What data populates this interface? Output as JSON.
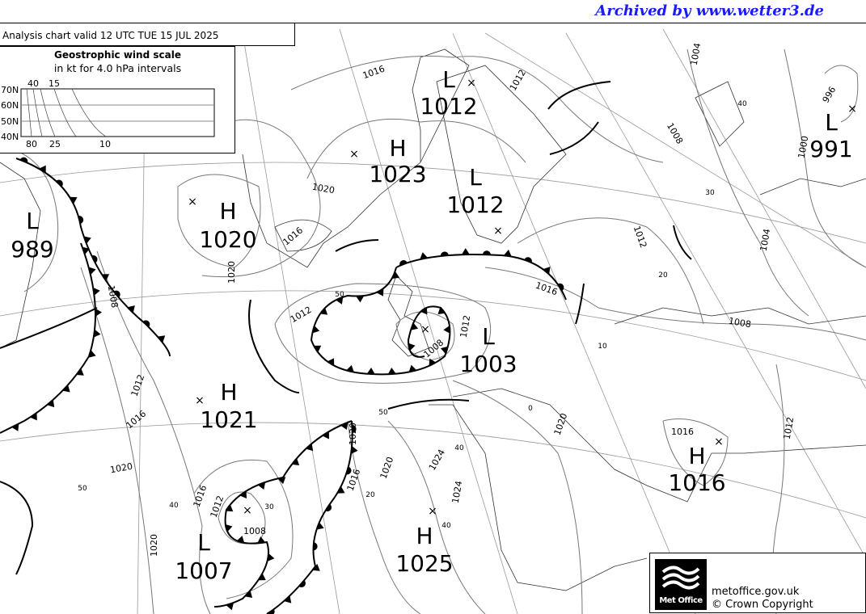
{
  "archive_notice": "Archived by www.wetter3.de",
  "chart_title": "Analysis chart  valid 12 UTC TUE 15  JUL 2025",
  "wind_scale": {
    "title": "Geostrophic wind scale",
    "subtitle": "in kt for 4.0 hPa intervals",
    "latitudes": [
      "70N",
      "60N",
      "50N",
      "40N"
    ],
    "top_labels": [
      "40",
      "15"
    ],
    "bottom_labels": [
      "80",
      "25",
      "10"
    ]
  },
  "pressure_systems": [
    {
      "type": "L",
      "pressure": "1012"
    },
    {
      "type": "H",
      "pressure": "1023"
    },
    {
      "type": "L",
      "pressure": "1012"
    },
    {
      "type": "H",
      "pressure": "1020"
    },
    {
      "type": "L",
      "pressure": "989"
    },
    {
      "type": "L",
      "pressure": "991"
    },
    {
      "type": "L",
      "pressure": "1003"
    },
    {
      "type": "H",
      "pressure": "1021"
    },
    {
      "type": "L",
      "pressure": "1007"
    },
    {
      "type": "H",
      "pressure": "1025"
    },
    {
      "type": "H",
      "pressure": "1016"
    }
  ],
  "isobar_labels": [
    "1016",
    "1012",
    "1004",
    "996",
    "1000",
    "1008",
    "1020",
    "1016",
    "1020",
    "1008",
    "1012",
    "1016",
    "1012",
    "1004",
    "1008",
    "1012",
    "1008",
    "1012",
    "1016",
    "1020",
    "1016",
    "1012",
    "1008",
    "1020",
    "1016",
    "1020",
    "1024",
    "1024",
    "1020",
    "1016",
    "1012",
    "1020"
  ],
  "wind_scale_labels": [
    "40",
    "30",
    "20",
    "10",
    "0",
    "50",
    "50",
    "50",
    "40",
    "30",
    "20",
    "40",
    "40"
  ],
  "footer": {
    "logo_text": "Met Office",
    "site": "metoffice.gov.uk",
    "copyright": "© Crown Copyright"
  },
  "colors": {
    "archive_notice": "#1a1aff",
    "isobar": "#777777",
    "front": "#000000"
  }
}
